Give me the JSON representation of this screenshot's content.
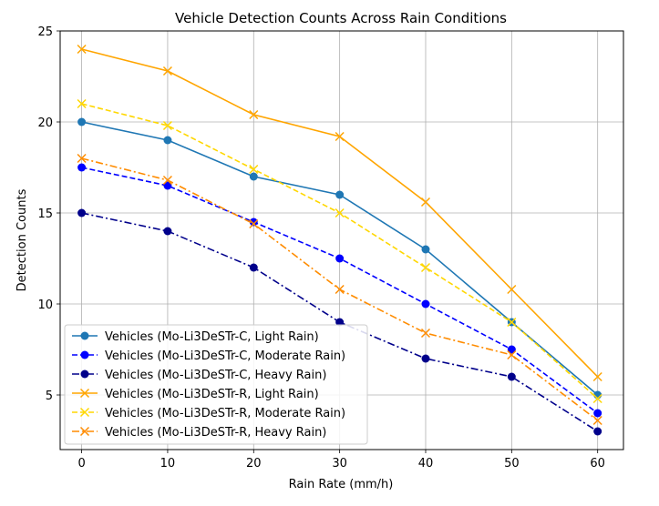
{
  "chart_data": {
    "type": "line",
    "title": "Vehicle Detection Counts Across Rain Conditions",
    "xlabel": "Rain Rate (mm/h)",
    "ylabel": "Detection Counts",
    "x": [
      0,
      10,
      20,
      30,
      40,
      50,
      60
    ],
    "xticks": [
      0,
      10,
      20,
      30,
      40,
      50,
      60
    ],
    "yticks": [
      5,
      10,
      15,
      20,
      25
    ],
    "xlim": [
      -2.5,
      63
    ],
    "ylim": [
      2.0,
      25.0
    ],
    "grid": true,
    "legend_position": "lower-left",
    "series": [
      {
        "name": "Vehicles (Mo-Li3DeSTr-C, Light Rain)",
        "color": "#1f77b4",
        "dash": "solid",
        "marker": "circle",
        "values": [
          20,
          19,
          17,
          16,
          13,
          9,
          5
        ]
      },
      {
        "name": "Vehicles (Mo-Li3DeSTr-C, Moderate Rain)",
        "color": "#0000ff",
        "dash": "dashed",
        "marker": "circle",
        "values": [
          17.5,
          16.5,
          14.5,
          12.5,
          10,
          7.5,
          4
        ]
      },
      {
        "name": "Vehicles (Mo-Li3DeSTr-C, Heavy Rain)",
        "color": "#00008b",
        "dash": "dashdot",
        "marker": "circle",
        "values": [
          15,
          14,
          12,
          9,
          7,
          6,
          3
        ]
      },
      {
        "name": "Vehicles (Mo-Li3DeSTr-R, Light Rain)",
        "color": "#ffa500",
        "dash": "solid",
        "marker": "x",
        "values": [
          24,
          22.8,
          20.4,
          19.2,
          15.6,
          10.8,
          6
        ]
      },
      {
        "name": "Vehicles (Mo-Li3DeSTr-R, Moderate Rain)",
        "color": "#ffd700",
        "dash": "dashed",
        "marker": "x",
        "values": [
          21,
          19.8,
          17.4,
          15,
          12,
          9,
          4.8
        ]
      },
      {
        "name": "Vehicles (Mo-Li3DeSTr-R, Heavy Rain)",
        "color": "#ff8c00",
        "dash": "dashdot",
        "marker": "x",
        "values": [
          18,
          16.8,
          14.4,
          10.8,
          8.4,
          7.2,
          3.6
        ]
      }
    ]
  }
}
